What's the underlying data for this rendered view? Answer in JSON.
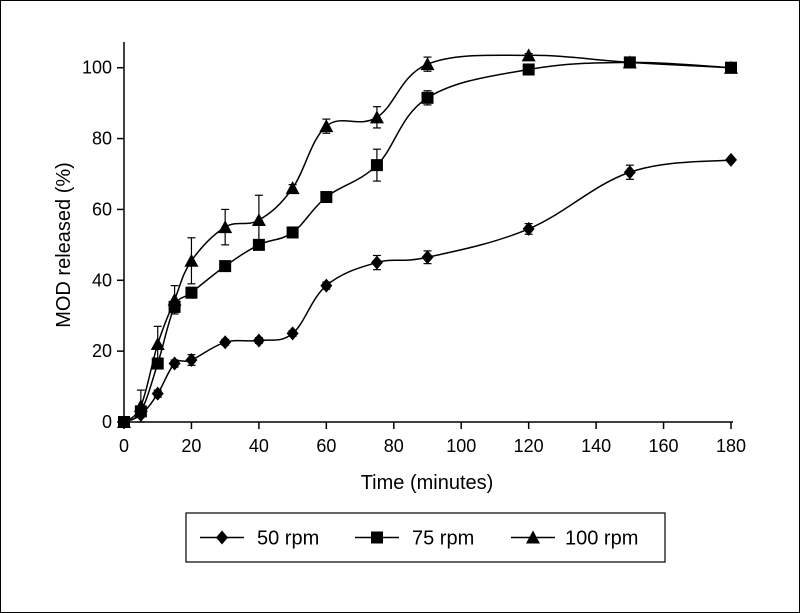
{
  "chart_data": {
    "type": "line",
    "title": "",
    "xlabel": "Time (minutes)",
    "ylabel": "MOD released (%)",
    "xlim": [
      0,
      180
    ],
    "ylim": [
      0,
      105
    ],
    "xticks": [
      0,
      20,
      40,
      60,
      80,
      100,
      120,
      140,
      160,
      180
    ],
    "yticks": [
      0,
      20,
      40,
      60,
      80,
      100
    ],
    "x": [
      0,
      5,
      10,
      15,
      20,
      30,
      40,
      50,
      60,
      75,
      90,
      120,
      150,
      180
    ],
    "grid": false,
    "legend_position": "bottom",
    "series": [
      {
        "name": "50 rpm",
        "marker": "diamond",
        "x": [
          0,
          5,
          10,
          15,
          20,
          30,
          40,
          50,
          60,
          75,
          90,
          120,
          150,
          180
        ],
        "values": [
          0,
          2,
          8,
          16.5,
          17.5,
          22.5,
          23,
          25,
          38.5,
          45,
          46.5,
          54.5,
          70.5,
          74
        ],
        "errors": [
          0,
          0.5,
          1,
          1,
          1.5,
          0.8,
          0.8,
          0.8,
          1,
          2,
          1.8,
          1.5,
          2,
          0.5
        ]
      },
      {
        "name": "75 rpm",
        "marker": "square",
        "x": [
          0,
          5,
          10,
          15,
          20,
          30,
          40,
          50,
          60,
          75,
          90,
          120,
          150,
          180
        ],
        "values": [
          0,
          3,
          16.5,
          32.5,
          36.5,
          44,
          50,
          53.5,
          63.5,
          72.5,
          91.5,
          99.5,
          101.5,
          100
        ],
        "errors": [
          0,
          1,
          1.5,
          1.5,
          1.5,
          0.8,
          1,
          0.8,
          1,
          4.5,
          2,
          1.5,
          1.5,
          0.8
        ]
      },
      {
        "name": "100 rpm",
        "marker": "triangle",
        "x": [
          0,
          5,
          10,
          15,
          20,
          30,
          40,
          50,
          60,
          75,
          90,
          120,
          150,
          180
        ],
        "values": [
          0,
          4.5,
          22,
          34.5,
          45.5,
          55,
          57,
          66,
          83.5,
          86,
          101,
          103.5,
          101.5,
          100
        ],
        "errors": [
          0,
          4.5,
          5,
          4,
          6.5,
          5,
          7,
          1,
          2,
          3,
          2,
          0.5,
          1,
          0.5
        ]
      }
    ]
  }
}
